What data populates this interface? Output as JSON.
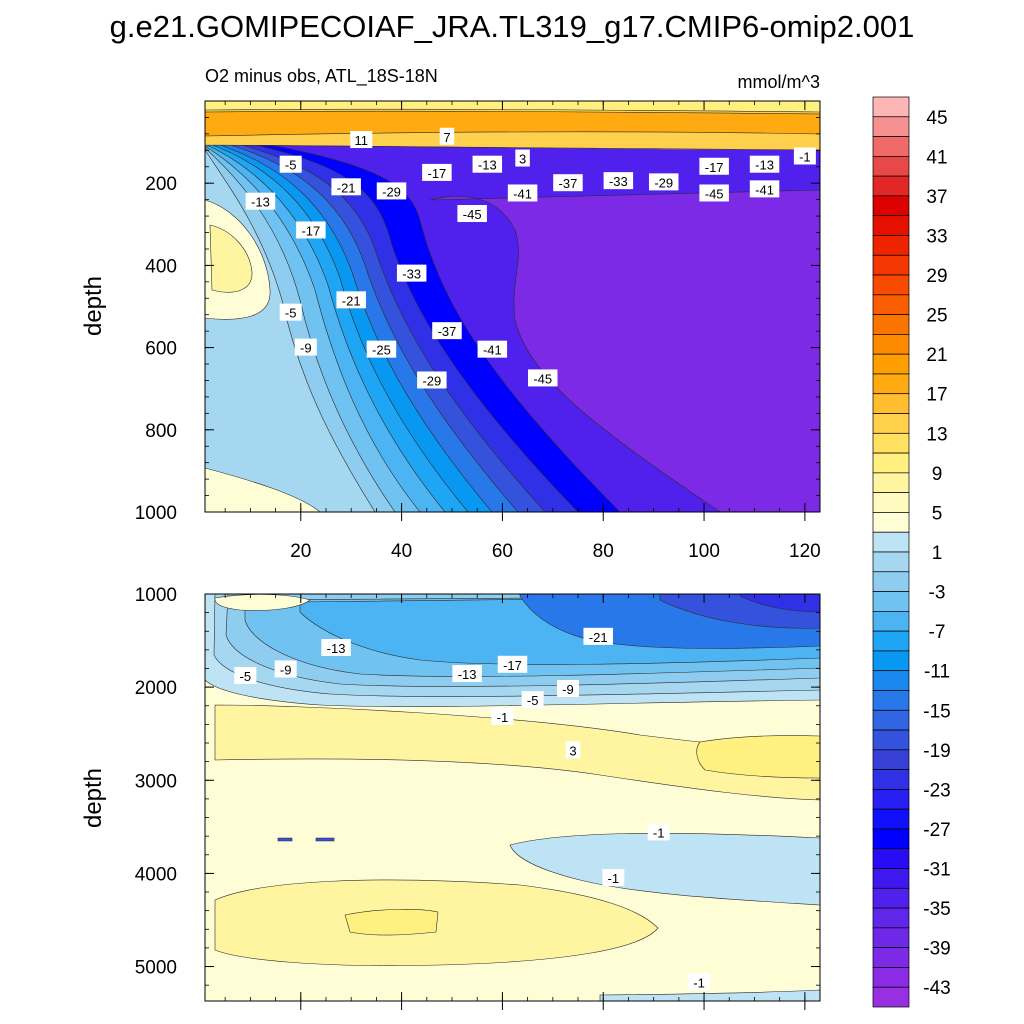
{
  "title": "g.e21.GOMIPECOIAF_JRA.TL319_g17.CMIP6-omip2.001",
  "chart_data": [
    {
      "type": "contour",
      "panel": "upper",
      "subtitle_left": "O2 minus obs, ATL_18S-18N",
      "subtitle_right": "mmol/m^3",
      "xlabel": "",
      "ylabel": "depth",
      "xlim": [
        1,
        123
      ],
      "ylim": [
        1000,
        0
      ],
      "x_ticks": [
        20,
        40,
        60,
        80,
        100,
        120
      ],
      "x_tick_labels": [
        "20",
        "40",
        "60",
        "80",
        "100",
        "120"
      ],
      "y_ticks": [
        200,
        400,
        600,
        800,
        1000
      ],
      "y_tick_labels": [
        "200",
        "400",
        "600",
        "800",
        "1000"
      ],
      "contour_labels": [
        {
          "text": "11",
          "x": 32,
          "y": 95
        },
        {
          "text": "7",
          "x": 49,
          "y": 87
        },
        {
          "text": "-5",
          "x": 18,
          "y": 155
        },
        {
          "text": "-17",
          "x": 47,
          "y": 175
        },
        {
          "text": "-13",
          "x": 57,
          "y": 155
        },
        {
          "text": "3",
          "x": 64,
          "y": 140
        },
        {
          "text": "-21",
          "x": 29,
          "y": 210
        },
        {
          "text": "-29",
          "x": 38,
          "y": 220
        },
        {
          "text": "-37",
          "x": 73,
          "y": 200
        },
        {
          "text": "-33",
          "x": 83,
          "y": 195
        },
        {
          "text": "-29",
          "x": 92,
          "y": 198
        },
        {
          "text": "-17",
          "x": 102,
          "y": 160
        },
        {
          "text": "-13",
          "x": 112,
          "y": 155
        },
        {
          "text": "-1",
          "x": 120,
          "y": 135
        },
        {
          "text": "-13",
          "x": 12,
          "y": 245
        },
        {
          "text": "-45",
          "x": 54,
          "y": 275
        },
        {
          "text": "-41",
          "x": 64,
          "y": 225
        },
        {
          "text": "-45",
          "x": 102,
          "y": 225
        },
        {
          "text": "-41",
          "x": 112,
          "y": 215
        },
        {
          "text": "-17",
          "x": 22,
          "y": 315
        },
        {
          "text": "-33",
          "x": 42,
          "y": 420
        },
        {
          "text": "-21",
          "x": 30,
          "y": 485
        },
        {
          "text": "-5",
          "x": 18,
          "y": 515
        },
        {
          "text": "-37",
          "x": 49,
          "y": 560
        },
        {
          "text": "-9",
          "x": 21,
          "y": 600
        },
        {
          "text": "-25",
          "x": 36,
          "y": 605
        },
        {
          "text": "-41",
          "x": 58,
          "y": 605
        },
        {
          "text": "-29",
          "x": 46,
          "y": 680
        },
        {
          "text": "-45",
          "x": 68,
          "y": 675
        }
      ]
    },
    {
      "type": "contour",
      "panel": "lower",
      "xlabel": "",
      "ylabel": "depth",
      "xlim": [
        1,
        123
      ],
      "ylim": [
        5370,
        1000
      ],
      "y_ticks": [
        1000,
        2000,
        3000,
        4000,
        5000
      ],
      "y_tick_labels": [
        "1000",
        "2000",
        "3000",
        "4000",
        "5000"
      ],
      "contour_labels": [
        {
          "text": "-13",
          "x": 27,
          "y": 1580
        },
        {
          "text": "-21",
          "x": 79,
          "y": 1460
        },
        {
          "text": "-5",
          "x": 9,
          "y": 1880
        },
        {
          "text": "-9",
          "x": 17,
          "y": 1810
        },
        {
          "text": "-13",
          "x": 53,
          "y": 1860
        },
        {
          "text": "-17",
          "x": 62,
          "y": 1760
        },
        {
          "text": "-9",
          "x": 73,
          "y": 2020
        },
        {
          "text": "-5",
          "x": 66,
          "y": 2140
        },
        {
          "text": "-1",
          "x": 60,
          "y": 2320
        },
        {
          "text": "3",
          "x": 74,
          "y": 2680
        },
        {
          "text": "-1",
          "x": 91,
          "y": 3560
        },
        {
          "text": "-1",
          "x": 82,
          "y": 4050
        },
        {
          "text": "-1",
          "x": 99,
          "y": 5170
        }
      ]
    }
  ],
  "colorbar": {
    "units": "mmol/m^3",
    "levels": [
      -45,
      -43,
      -41,
      -39,
      -37,
      -35,
      -33,
      -31,
      -29,
      -27,
      -25,
      -23,
      -21,
      -19,
      -17,
      -15,
      -13,
      -11,
      -9,
      -7,
      -5,
      -3,
      -1,
      1,
      3,
      5,
      7,
      9,
      11,
      13,
      15,
      17,
      19,
      21,
      23,
      25,
      27,
      29,
      31,
      33,
      35,
      37,
      39,
      41,
      43,
      45
    ],
    "labels": [
      "45",
      "41",
      "37",
      "33",
      "29",
      "25",
      "21",
      "17",
      "13",
      "9",
      "5",
      "1",
      "-3",
      "-7",
      "-11",
      "-15",
      "-19",
      "-23",
      "-27",
      "-31",
      "-35",
      "-39",
      "-43"
    ],
    "colors_top_to_bottom": [
      "#fdb6b6",
      "#f79090",
      "#f06a6a",
      "#e94848",
      "#e32626",
      "#dd0000",
      "#e51000",
      "#ee2400",
      "#f43600",
      "#f84a00",
      "#fa5e00",
      "#fc7400",
      "#fe8a00",
      "#ff9e00",
      "#ffaa10",
      "#ffbe30",
      "#ffd04c",
      "#ffe060",
      "#fff080",
      "#fff5a0",
      "#fffac0",
      "#fffdd5",
      "#bde3f4",
      "#a6d7f0",
      "#8ecdf0",
      "#70c2f0",
      "#4cb4f2",
      "#1ea5f4",
      "#0898f2",
      "#1a88ee",
      "#2878ea",
      "#3065e4",
      "#3452dc",
      "#3640d6",
      "#3030e6",
      "#2820f2",
      "#1010fa",
      "#0000ff",
      "#2a0cf4",
      "#3e18ee",
      "#5020ec",
      "#6026ea",
      "#6e28e8",
      "#7c2ae6",
      "#8a2ce4",
      "#9830e2"
    ]
  }
}
